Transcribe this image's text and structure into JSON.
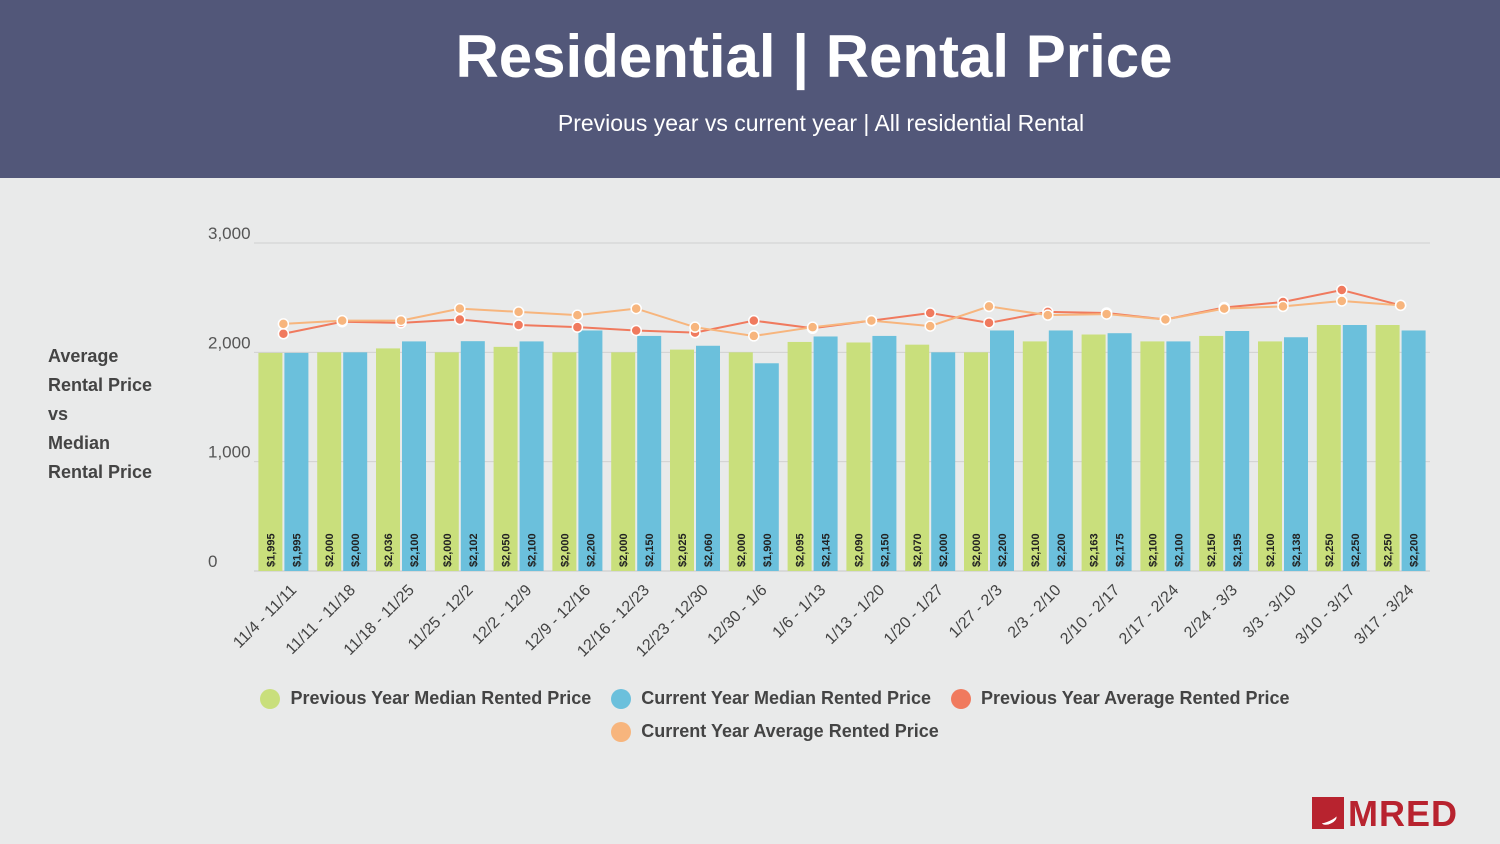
{
  "header": {
    "title": "Residential | Rental Price",
    "subtitle": "Previous year vs current year | All residential Rental"
  },
  "y_axis_title_lines": [
    "Average",
    "Rental Price",
    "vs",
    "Median",
    "Rental Price"
  ],
  "logo": {
    "text": "MRED",
    "color": "#b8232f"
  },
  "chart_data": {
    "type": "bar",
    "title": "Residential | Rental Price",
    "subtitle": "Previous year vs current year | All residential Rental",
    "ylabel": "Average Rental Price vs Median Rental Price",
    "ylim": [
      0,
      3000
    ],
    "yticks": [
      0,
      1000,
      2000,
      3000
    ],
    "ytick_labels": [
      "0",
      "1,000",
      "2,000",
      "3,000"
    ],
    "grid": true,
    "legend_position": "bottom",
    "categories": [
      "11/4 - 11/11",
      "11/11 - 11/18",
      "11/18 - 11/25",
      "11/25 - 12/2",
      "12/2 - 12/9",
      "12/9 - 12/16",
      "12/16 - 12/23",
      "12/23 - 12/30",
      "12/30 - 1/6",
      "1/6 - 1/13",
      "1/13 - 1/20",
      "1/20 - 1/27",
      "1/27 - 2/3",
      "2/3 - 2/10",
      "2/10 - 2/17",
      "2/17 - 2/24",
      "2/24 - 3/3",
      "3/3 - 3/10",
      "3/10 - 3/17",
      "3/17 - 3/24"
    ],
    "series": [
      {
        "name": "Previous Year Median Rented Price",
        "kind": "bar",
        "color": "#c9df7c",
        "values": [
          1995,
          2000,
          2036,
          2000,
          2050,
          2000,
          2000,
          2025,
          2000,
          2095,
          2090,
          2070,
          2000,
          2100,
          2163,
          2100,
          2150,
          2100,
          2250,
          2250
        ],
        "labels": [
          "$1,995",
          "$2,000",
          "$2,036",
          "$2,000",
          "$2,050",
          "$2,000",
          "$2,000",
          "$2,025",
          "$2,000",
          "$2,095",
          "$2,090",
          "$2,070",
          "$2,000",
          "$2,100",
          "$2,163",
          "$2,100",
          "$2,150",
          "$2,100",
          "$2,250",
          "$2,250"
        ]
      },
      {
        "name": "Current Year Median Rented Price",
        "kind": "bar",
        "color": "#6bc0dc",
        "values": [
          1995,
          2000,
          2100,
          2102,
          2100,
          2200,
          2150,
          2060,
          1900,
          2145,
          2150,
          2000,
          2200,
          2200,
          2175,
          2100,
          2195,
          2138,
          2250,
          2200
        ],
        "labels": [
          "$1,995",
          "$2,000",
          "$2,100",
          "$2,102",
          "$2,100",
          "$2,200",
          "$2,150",
          "$2,060",
          "$1,900",
          "$2,145",
          "$2,150",
          "$2,000",
          "$2,200",
          "$2,200",
          "$2,175",
          "$2,100",
          "$2,195",
          "$2,138",
          "$2,250",
          "$2,200"
        ]
      },
      {
        "name": "Previous Year Average Rented Price",
        "kind": "line",
        "color": "#f07a5e",
        "values": [
          2170,
          2280,
          2270,
          2300,
          2250,
          2230,
          2200,
          2180,
          2290,
          2220,
          2290,
          2360,
          2270,
          2370,
          2360,
          2300,
          2410,
          2460,
          2570,
          2430
        ]
      },
      {
        "name": "Current Year Average Rented Price",
        "kind": "line",
        "color": "#f7b57d",
        "values": [
          2260,
          2290,
          2290,
          2400,
          2370,
          2340,
          2400,
          2230,
          2150,
          2230,
          2290,
          2240,
          2420,
          2340,
          2350,
          2300,
          2400,
          2420,
          2470,
          2430
        ]
      }
    ]
  }
}
